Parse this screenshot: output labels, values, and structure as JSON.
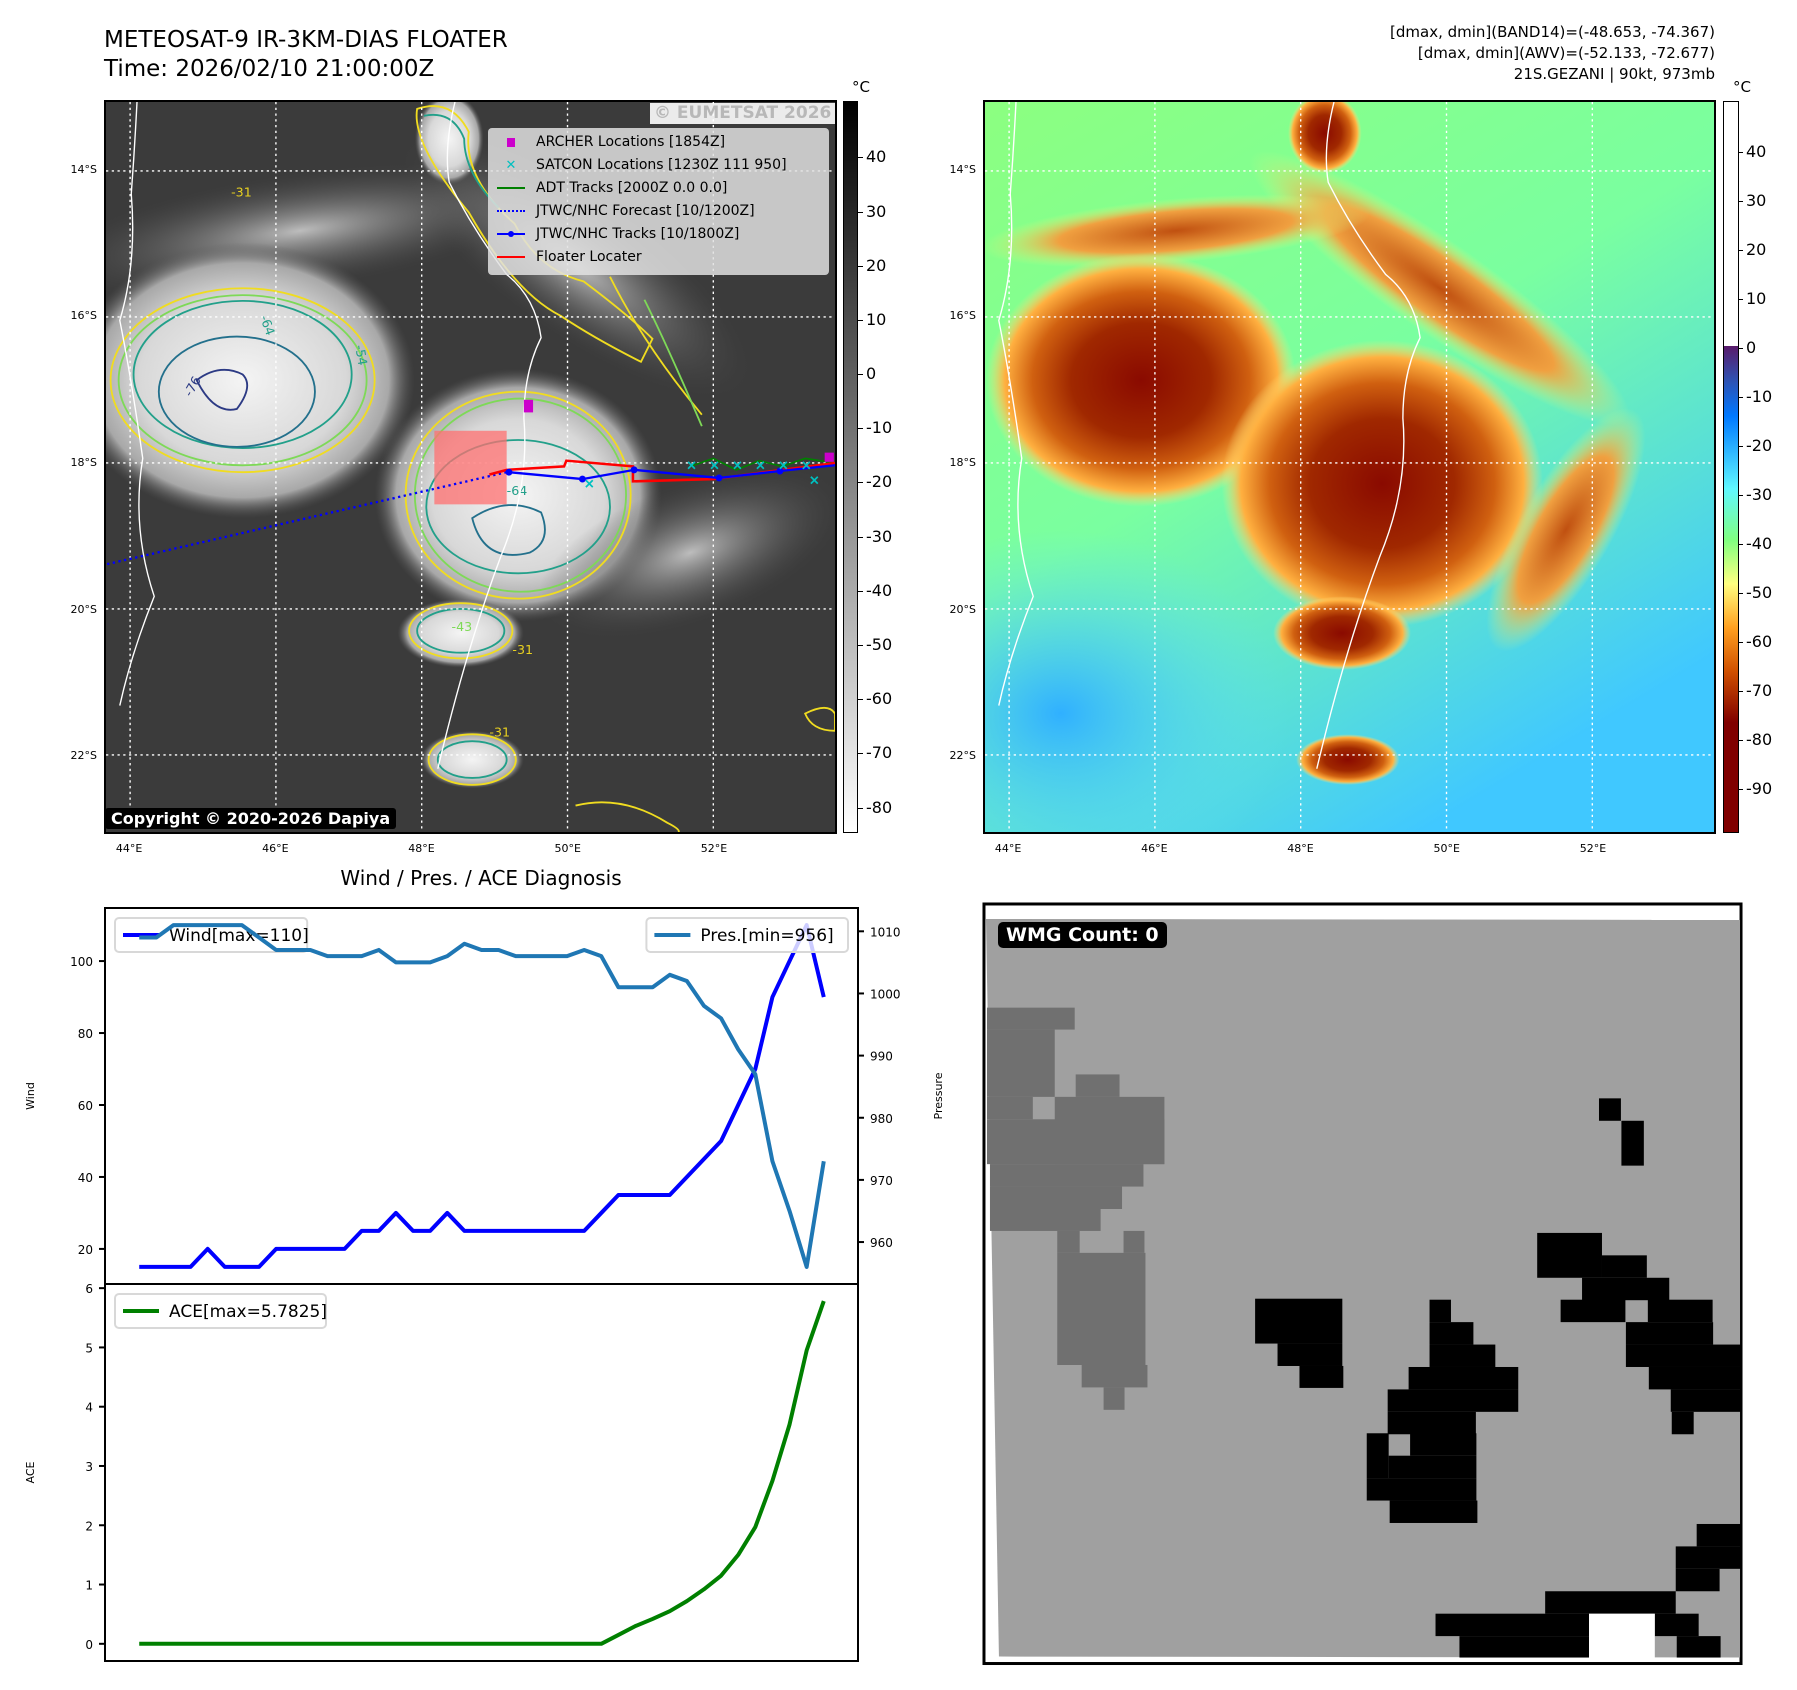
{
  "header": {
    "title": "METEOSAT-9 IR-3KM-DIAS FLOATER",
    "time": "Time: 2026/02/10 21:00:00Z",
    "stats": [
      "[dmax, dmin](BAND14)=(-48.653, -74.367)",
      "[dmax, dmin](AWV)=(-52.133, -72.677)",
      "21S.GEZANI | 90kt, 973mb"
    ]
  },
  "map_extent": {
    "lon": [
      43.67,
      53.67
    ],
    "lat": [
      -13.06,
      -23.05
    ]
  },
  "lon_ticks": [
    {
      "v": 44,
      "label": "44°E"
    },
    {
      "v": 46,
      "label": "46°E"
    },
    {
      "v": 48,
      "label": "48°E"
    },
    {
      "v": 50,
      "label": "50°E"
    },
    {
      "v": 52,
      "label": "52°E"
    }
  ],
  "lat_ticks": [
    {
      "v": -14,
      "label": "14°S"
    },
    {
      "v": -16,
      "label": "16°S"
    },
    {
      "v": -18,
      "label": "18°S"
    },
    {
      "v": -20,
      "label": "20°S"
    },
    {
      "v": -22,
      "label": "22°S"
    }
  ],
  "ir_map": {
    "legend": [
      {
        "label": "ARCHER Locations [1854Z]",
        "icon": "square-marker",
        "color": "#cc00cc"
      },
      {
        "label": "SATCON Locations [1230Z 111 950]",
        "icon": "x-marker",
        "color": "#00c0c0"
      },
      {
        "label": "ADT Tracks [2000Z 0.0 0.0]",
        "icon": "line",
        "color": "#008000"
      },
      {
        "label": "JTWC/NHC Forecast [10/1200Z]",
        "icon": "dotted-line",
        "color": "#0000ff"
      },
      {
        "label": "JTWC/NHC Tracks [10/1800Z]",
        "icon": "line-dot",
        "color": "#0000ff"
      },
      {
        "label": "Floater Locater",
        "icon": "line",
        "color": "#ff0000"
      }
    ],
    "watermark": "© EUMETSAT 2026",
    "copyright": "Copyright © 2020-2026 Dapiya",
    "contour_labels": [
      "-31",
      "-64",
      "-76",
      "-54",
      "-43"
    ],
    "colorbar": {
      "unit": "°C",
      "range": [
        -84.7,
        50.4
      ],
      "ticks": [
        40,
        30,
        20,
        10,
        0,
        -10,
        -20,
        -30,
        -40,
        -50,
        -60,
        -70,
        -80
      ]
    }
  },
  "awv_map": {
    "colorbar": {
      "unit": "°C",
      "range": [
        -99,
        50.5
      ],
      "ticks": [
        40,
        30,
        20,
        10,
        0,
        -10,
        -20,
        -30,
        -40,
        -50,
        -60,
        -70,
        -80,
        -90
      ]
    }
  },
  "chart_data": [
    {
      "type": "line",
      "title": "Wind / Pres. / ACE Diagnosis",
      "xlim": [
        -2,
        42
      ],
      "x": [
        0,
        1,
        2,
        3,
        4,
        5,
        6,
        7,
        8,
        9,
        10,
        11,
        12,
        13,
        14,
        15,
        16,
        17,
        18,
        19,
        20,
        21,
        22,
        23,
        24,
        25,
        26,
        27,
        28,
        29,
        30,
        31,
        32,
        33,
        34,
        35,
        36,
        37,
        38,
        39,
        40
      ],
      "series": [
        {
          "name": "Wind[max=110]",
          "axis": "left",
          "color": "#0000ff",
          "values": [
            15,
            15,
            15,
            15,
            20,
            15,
            15,
            15,
            20,
            20,
            20,
            20,
            20,
            25,
            25,
            30,
            25,
            25,
            30,
            25,
            25,
            25,
            25,
            25,
            25,
            25,
            25,
            30,
            35,
            35,
            35,
            35,
            40,
            45,
            50,
            60,
            70,
            90,
            100,
            110,
            90
          ]
        },
        {
          "name": "Pres.[min=956]",
          "axis": "right",
          "color": "#1f77b4",
          "values": [
            1009,
            1009,
            1011,
            1011,
            1011,
            1011,
            1011,
            1009,
            1007,
            1007,
            1007,
            1006,
            1006,
            1006,
            1007,
            1005,
            1005,
            1005,
            1006,
            1008,
            1007,
            1007,
            1006,
            1006,
            1006,
            1006,
            1007,
            1006,
            1001,
            1001,
            1001,
            1003,
            1002,
            998,
            996,
            991,
            987,
            973,
            965,
            956,
            973
          ]
        }
      ],
      "ylabel": "Wind",
      "ylim": [
        10.25,
        114.75
      ],
      "yticks": [
        20,
        40,
        60,
        80,
        100
      ],
      "y2label": "Pressure",
      "y2lim": [
        953.25,
        1013.75
      ],
      "y2ticks": [
        960,
        970,
        980,
        990,
        1000,
        1010
      ]
    },
    {
      "type": "line",
      "xlim": [
        -2,
        42
      ],
      "x": [
        0,
        1,
        2,
        3,
        4,
        5,
        6,
        7,
        8,
        9,
        10,
        11,
        12,
        13,
        14,
        15,
        16,
        17,
        18,
        19,
        20,
        21,
        22,
        23,
        24,
        25,
        26,
        27,
        28,
        29,
        30,
        31,
        32,
        33,
        34,
        35,
        36,
        37,
        38,
        39,
        40
      ],
      "series": [
        {
          "name": "ACE[max=5.7825]",
          "axis": "left",
          "color": "#008000",
          "values": [
            0,
            0,
            0,
            0,
            0,
            0,
            0,
            0,
            0,
            0,
            0,
            0,
            0,
            0,
            0,
            0,
            0,
            0,
            0,
            0,
            0,
            0,
            0,
            0,
            0,
            0,
            0,
            0,
            0.15,
            0.3,
            0.42,
            0.55,
            0.72,
            0.92,
            1.15,
            1.5,
            1.97,
            2.75,
            3.7,
            4.95,
            5.7825
          ]
        }
      ],
      "ylabel": "ACE",
      "ylim": [
        -0.29,
        6.07
      ],
      "yticks": [
        0,
        1,
        2,
        3,
        4,
        5,
        6
      ]
    }
  ],
  "wmg": {
    "label": "WMG Count: 0"
  }
}
